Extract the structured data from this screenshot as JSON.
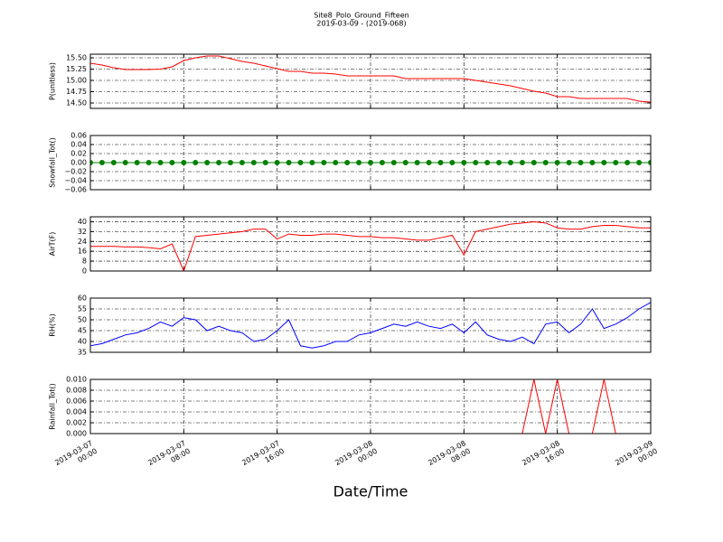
{
  "chart_data": [
    {
      "type": "line",
      "title": "Site8_Polo_Ground_Fifteen",
      "subtitle": "2019-03-09 - (2019-068)",
      "ylabel": "P(unitless)",
      "color": "#ff0000",
      "x": [
        "2019-03-07 00:00",
        "2019-03-07 01:00",
        "2019-03-07 02:00",
        "2019-03-07 03:00",
        "2019-03-07 04:00",
        "2019-03-07 05:00",
        "2019-03-07 06:00",
        "2019-03-07 07:00",
        "2019-03-07 08:00",
        "2019-03-07 09:00",
        "2019-03-07 10:00",
        "2019-03-07 11:00",
        "2019-03-07 12:00",
        "2019-03-07 13:00",
        "2019-03-07 14:00",
        "2019-03-07 15:00",
        "2019-03-07 16:00",
        "2019-03-07 17:00",
        "2019-03-07 18:00",
        "2019-03-07 19:00",
        "2019-03-07 20:00",
        "2019-03-07 21:00",
        "2019-03-07 22:00",
        "2019-03-07 23:00",
        "2019-03-08 00:00",
        "2019-03-08 01:00",
        "2019-03-08 02:00",
        "2019-03-08 03:00",
        "2019-03-08 04:00",
        "2019-03-08 05:00",
        "2019-03-08 06:00",
        "2019-03-08 07:00",
        "2019-03-08 08:00",
        "2019-03-08 09:00",
        "2019-03-08 10:00",
        "2019-03-08 11:00",
        "2019-03-08 12:00",
        "2019-03-08 13:00",
        "2019-03-08 14:00",
        "2019-03-08 15:00",
        "2019-03-08 16:00",
        "2019-03-08 17:00",
        "2019-03-08 18:00",
        "2019-03-08 19:00",
        "2019-03-08 20:00",
        "2019-03-08 21:00",
        "2019-03-08 22:00",
        "2019-03-08 23:00",
        "2019-03-09 00:00"
      ],
      "values": [
        15.38,
        15.34,
        15.28,
        15.24,
        15.24,
        15.24,
        15.25,
        15.3,
        15.44,
        15.5,
        15.54,
        15.54,
        15.48,
        15.42,
        15.38,
        15.32,
        15.26,
        15.2,
        15.2,
        15.16,
        15.16,
        15.14,
        15.1,
        15.1,
        15.1,
        15.1,
        15.1,
        15.04,
        15.04,
        15.04,
        15.04,
        15.04,
        15.04,
        15.0,
        14.96,
        14.92,
        14.88,
        14.82,
        14.76,
        14.72,
        14.64,
        14.64,
        14.6,
        14.6,
        14.6,
        14.6,
        14.6,
        14.54,
        14.52
      ],
      "ylim": [
        14.38,
        15.58
      ],
      "yticks": [
        {
          "value": 14.5,
          "label": "14.50"
        },
        {
          "value": 14.75,
          "label": "14.75"
        },
        {
          "value": 15.0,
          "label": "15.00"
        },
        {
          "value": 15.25,
          "label": "15.25"
        },
        {
          "value": 15.5,
          "label": "15.50"
        }
      ],
      "grid": true
    },
    {
      "type": "line",
      "ylabel": "Snowfall_Tot()",
      "color": "#008000",
      "markers": true,
      "x": [
        "2019-03-07 00:00",
        "2019-03-07 01:00",
        "2019-03-07 02:00",
        "2019-03-07 03:00",
        "2019-03-07 04:00",
        "2019-03-07 05:00",
        "2019-03-07 06:00",
        "2019-03-07 07:00",
        "2019-03-07 08:00",
        "2019-03-07 09:00",
        "2019-03-07 10:00",
        "2019-03-07 11:00",
        "2019-03-07 12:00",
        "2019-03-07 13:00",
        "2019-03-07 14:00",
        "2019-03-07 15:00",
        "2019-03-07 16:00",
        "2019-03-07 17:00",
        "2019-03-07 18:00",
        "2019-03-07 19:00",
        "2019-03-07 20:00",
        "2019-03-07 21:00",
        "2019-03-07 22:00",
        "2019-03-07 23:00",
        "2019-03-08 00:00",
        "2019-03-08 01:00",
        "2019-03-08 02:00",
        "2019-03-08 03:00",
        "2019-03-08 04:00",
        "2019-03-08 05:00",
        "2019-03-08 06:00",
        "2019-03-08 07:00",
        "2019-03-08 08:00",
        "2019-03-08 09:00",
        "2019-03-08 10:00",
        "2019-03-08 11:00",
        "2019-03-08 12:00",
        "2019-03-08 13:00",
        "2019-03-08 14:00",
        "2019-03-08 15:00",
        "2019-03-08 16:00",
        "2019-03-08 17:00",
        "2019-03-08 18:00",
        "2019-03-08 19:00",
        "2019-03-08 20:00",
        "2019-03-08 21:00",
        "2019-03-08 22:00",
        "2019-03-08 23:00",
        "2019-03-09 00:00"
      ],
      "values": [
        0,
        0,
        0,
        0,
        0,
        0,
        0,
        0,
        0,
        0,
        0,
        0,
        0,
        0,
        0,
        0,
        0,
        0,
        0,
        0,
        0,
        0,
        0,
        0,
        0,
        0,
        0,
        0,
        0,
        0,
        0,
        0,
        0,
        0,
        0,
        0,
        0,
        0,
        0,
        0,
        0,
        0,
        0,
        0,
        0,
        0,
        0,
        0,
        0
      ],
      "ylim": [
        -0.06,
        0.06
      ],
      "yticks": [
        {
          "value": -0.06,
          "label": "−0.06"
        },
        {
          "value": -0.04,
          "label": "−0.04"
        },
        {
          "value": -0.02,
          "label": "−0.02"
        },
        {
          "value": 0,
          "label": "0.00"
        },
        {
          "value": 0.02,
          "label": "0.02"
        },
        {
          "value": 0.04,
          "label": "0.04"
        },
        {
          "value": 0.06,
          "label": "0.06"
        }
      ],
      "grid": true
    },
    {
      "type": "line",
      "ylabel": "AirT(F)",
      "color": "#ff0000",
      "x": [
        "2019-03-07 00:00",
        "2019-03-07 01:00",
        "2019-03-07 02:00",
        "2019-03-07 03:00",
        "2019-03-07 04:00",
        "2019-03-07 05:00",
        "2019-03-07 06:00",
        "2019-03-07 07:00",
        "2019-03-07 08:00",
        "2019-03-07 09:00",
        "2019-03-07 10:00",
        "2019-03-07 11:00",
        "2019-03-07 12:00",
        "2019-03-07 13:00",
        "2019-03-07 14:00",
        "2019-03-07 15:00",
        "2019-03-07 16:00",
        "2019-03-07 17:00",
        "2019-03-07 18:00",
        "2019-03-07 19:00",
        "2019-03-07 20:00",
        "2019-03-07 21:00",
        "2019-03-07 22:00",
        "2019-03-07 23:00",
        "2019-03-08 00:00",
        "2019-03-08 01:00",
        "2019-03-08 02:00",
        "2019-03-08 03:00",
        "2019-03-08 04:00",
        "2019-03-08 05:00",
        "2019-03-08 06:00",
        "2019-03-08 07:00",
        "2019-03-08 08:00",
        "2019-03-08 09:00",
        "2019-03-08 10:00",
        "2019-03-08 11:00",
        "2019-03-08 12:00",
        "2019-03-08 13:00",
        "2019-03-08 14:00",
        "2019-03-08 15:00",
        "2019-03-08 16:00",
        "2019-03-08 17:00",
        "2019-03-08 18:00",
        "2019-03-08 19:00",
        "2019-03-08 20:00",
        "2019-03-08 21:00",
        "2019-03-08 22:00",
        "2019-03-08 23:00",
        "2019-03-09 00:00"
      ],
      "values": [
        20,
        20,
        20,
        19.5,
        19.5,
        19,
        18,
        22,
        0,
        28,
        29,
        30,
        31,
        32,
        34,
        34,
        26,
        30,
        29,
        29,
        30,
        30,
        29,
        28,
        28,
        27,
        27,
        26,
        25,
        25,
        27,
        29,
        13,
        32,
        34,
        36,
        38,
        39,
        40,
        39,
        35,
        34,
        34,
        36,
        37,
        37,
        36,
        35,
        35
      ],
      "ylim": [
        0,
        44
      ],
      "yticks": [
        0,
        8,
        16,
        24,
        32,
        40
      ],
      "grid": true
    },
    {
      "type": "line",
      "ylabel": "RH(%)",
      "color": "#0000ff",
      "x": [
        "2019-03-07 00:00",
        "2019-03-07 01:00",
        "2019-03-07 02:00",
        "2019-03-07 03:00",
        "2019-03-07 04:00",
        "2019-03-07 05:00",
        "2019-03-07 06:00",
        "2019-03-07 07:00",
        "2019-03-07 08:00",
        "2019-03-07 09:00",
        "2019-03-07 10:00",
        "2019-03-07 11:00",
        "2019-03-07 12:00",
        "2019-03-07 13:00",
        "2019-03-07 14:00",
        "2019-03-07 15:00",
        "2019-03-07 16:00",
        "2019-03-07 17:00",
        "2019-03-07 18:00",
        "2019-03-07 19:00",
        "2019-03-07 20:00",
        "2019-03-07 21:00",
        "2019-03-07 22:00",
        "2019-03-07 23:00",
        "2019-03-08 00:00",
        "2019-03-08 01:00",
        "2019-03-08 02:00",
        "2019-03-08 03:00",
        "2019-03-08 04:00",
        "2019-03-08 05:00",
        "2019-03-08 06:00",
        "2019-03-08 07:00",
        "2019-03-08 08:00",
        "2019-03-08 09:00",
        "2019-03-08 10:00",
        "2019-03-08 11:00",
        "2019-03-08 12:00",
        "2019-03-08 13:00",
        "2019-03-08 14:00",
        "2019-03-08 15:00",
        "2019-03-08 16:00",
        "2019-03-08 17:00",
        "2019-03-08 18:00",
        "2019-03-08 19:00",
        "2019-03-08 20:00",
        "2019-03-08 21:00",
        "2019-03-08 22:00",
        "2019-03-08 23:00",
        "2019-03-09 00:00"
      ],
      "values": [
        38,
        39,
        41,
        43,
        44,
        46,
        49,
        47,
        51,
        50,
        45,
        47,
        45,
        44,
        40,
        41,
        45,
        50,
        38,
        37,
        38,
        40,
        40,
        43,
        44,
        46,
        48,
        47,
        49,
        47,
        46,
        48,
        44,
        49,
        43,
        41,
        40,
        42,
        39,
        48,
        49,
        44,
        48,
        55,
        46,
        48,
        51,
        55,
        58
      ],
      "ylim": [
        35,
        60
      ],
      "yticks": [
        35,
        40,
        45,
        50,
        55,
        60
      ],
      "grid": true
    },
    {
      "type": "line",
      "ylabel": "Rainfall_Tot()",
      "xlabel": "Date/Time",
      "color": "#ff0000",
      "x": [
        "2019-03-07 00:00",
        "2019-03-07 01:00",
        "2019-03-07 02:00",
        "2019-03-07 03:00",
        "2019-03-07 04:00",
        "2019-03-07 05:00",
        "2019-03-07 06:00",
        "2019-03-07 07:00",
        "2019-03-07 08:00",
        "2019-03-07 09:00",
        "2019-03-07 10:00",
        "2019-03-07 11:00",
        "2019-03-07 12:00",
        "2019-03-07 13:00",
        "2019-03-07 14:00",
        "2019-03-07 15:00",
        "2019-03-07 16:00",
        "2019-03-07 17:00",
        "2019-03-07 18:00",
        "2019-03-07 19:00",
        "2019-03-07 20:00",
        "2019-03-07 21:00",
        "2019-03-07 22:00",
        "2019-03-07 23:00",
        "2019-03-08 00:00",
        "2019-03-08 01:00",
        "2019-03-08 02:00",
        "2019-03-08 03:00",
        "2019-03-08 04:00",
        "2019-03-08 05:00",
        "2019-03-08 06:00",
        "2019-03-08 07:00",
        "2019-03-08 08:00",
        "2019-03-08 09:00",
        "2019-03-08 10:00",
        "2019-03-08 11:00",
        "2019-03-08 12:00",
        "2019-03-08 13:00",
        "2019-03-08 14:00",
        "2019-03-08 15:00",
        "2019-03-08 16:00",
        "2019-03-08 17:00",
        "2019-03-08 18:00",
        "2019-03-08 19:00",
        "2019-03-08 20:00",
        "2019-03-08 21:00",
        "2019-03-08 22:00",
        "2019-03-08 23:00",
        "2019-03-09 00:00"
      ],
      "values": [
        0,
        0,
        0,
        0,
        0,
        0,
        0,
        0,
        0,
        0,
        0,
        0,
        0,
        0,
        0,
        0,
        0,
        0,
        0,
        0,
        0,
        0,
        0,
        0,
        0,
        0,
        0,
        0,
        0,
        0,
        0,
        0,
        0,
        0,
        0,
        0,
        0,
        0,
        0.01,
        0,
        0.01,
        0,
        0,
        0,
        0.01,
        0,
        0,
        0,
        0
      ],
      "ylim": [
        0,
        0.01
      ],
      "yticks": [
        {
          "value": 0,
          "label": "0.000"
        },
        {
          "value": 0.002,
          "label": "0.002"
        },
        {
          "value": 0.004,
          "label": "0.004"
        },
        {
          "value": 0.006,
          "label": "0.006"
        },
        {
          "value": 0.008,
          "label": "0.008"
        },
        {
          "value": 0.01,
          "label": "0.010"
        }
      ],
      "xlim": [
        "2019-03-07 00:00",
        "2019-03-09 00:00"
      ],
      "xticks": [
        {
          "value": "2019-03-07 00:00",
          "label": "2019-03-07\n00:00"
        },
        {
          "value": "2019-03-07 08:00",
          "label": "2019-03-07\n08:00"
        },
        {
          "value": "2019-03-07 16:00",
          "label": "2019-03-07\n16:00"
        },
        {
          "value": "2019-03-08 00:00",
          "label": "2019-03-08\n00:00"
        },
        {
          "value": "2019-03-08 08:00",
          "label": "2019-03-08\n08:00"
        },
        {
          "value": "2019-03-08 16:00",
          "label": "2019-03-08\n16:00"
        },
        {
          "value": "2019-03-09 00:00",
          "label": "2019-03-09\n00:00"
        }
      ],
      "grid": true
    }
  ]
}
